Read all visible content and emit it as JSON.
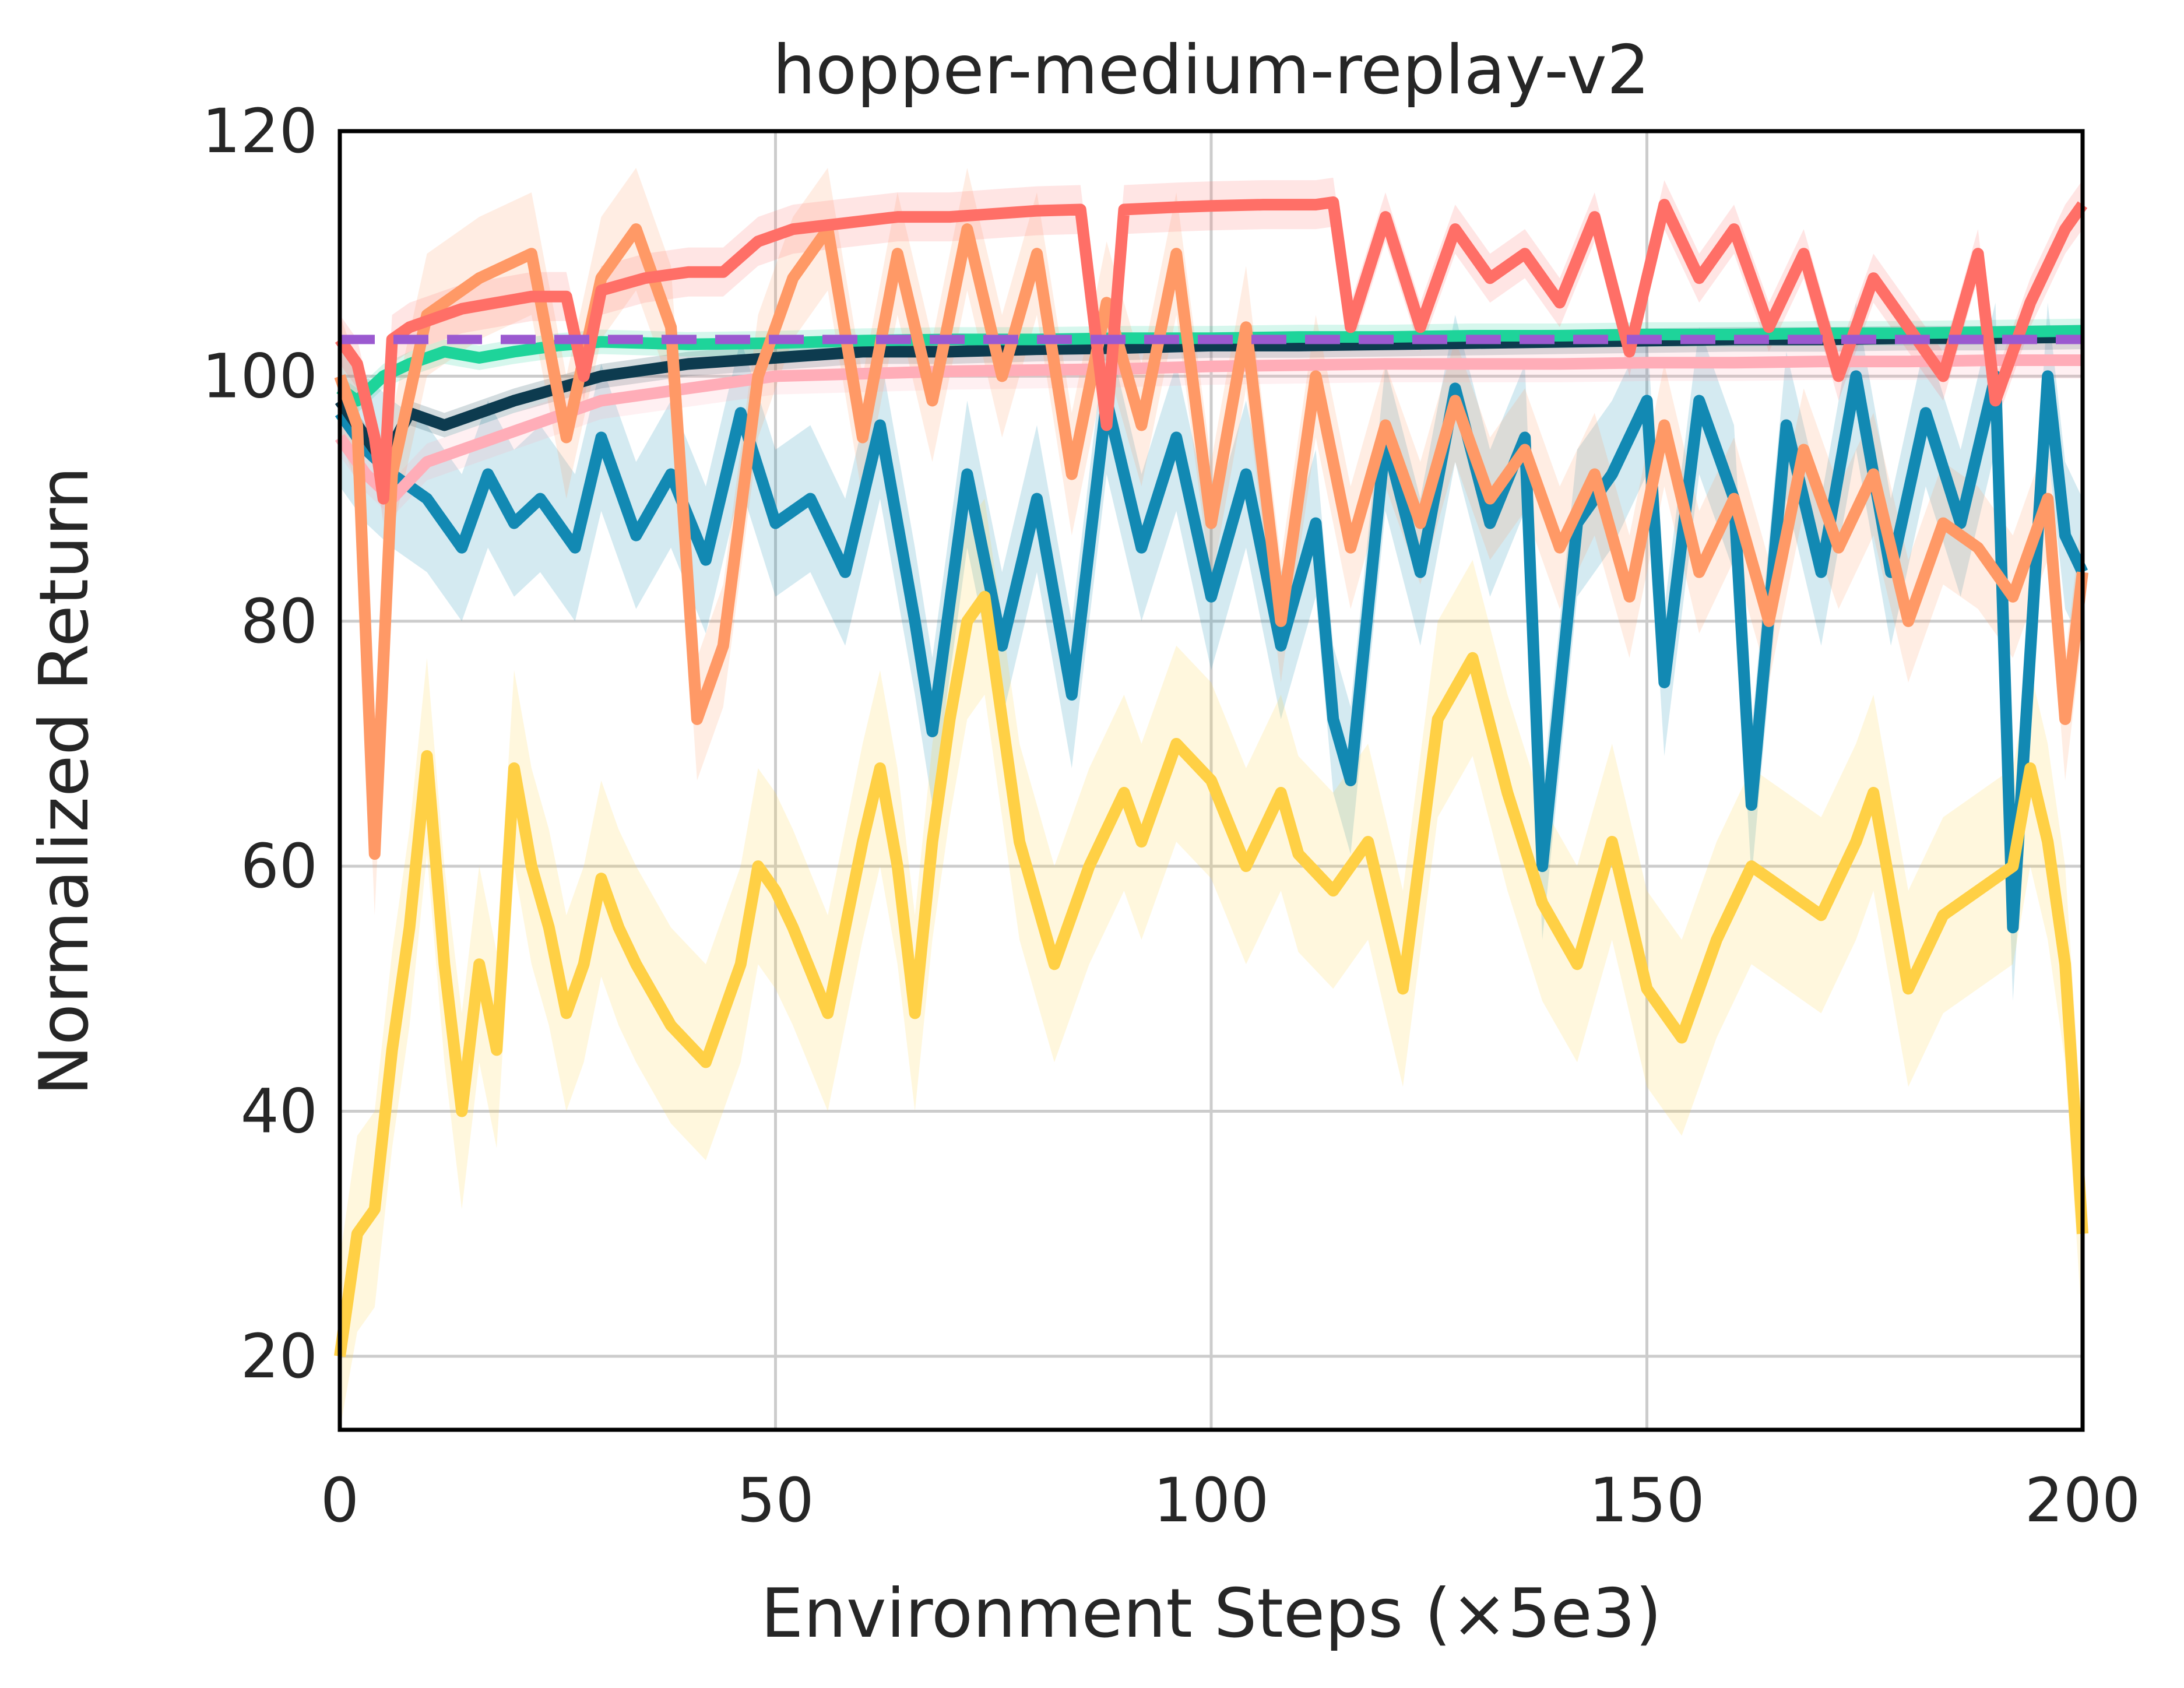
{
  "chart_data": {
    "type": "line",
    "title": "hopper-medium-replay-v2",
    "xlabel": "Environment Steps (×5e3)",
    "ylabel": "Normalized Return",
    "xlim": [
      0,
      200
    ],
    "ylim": [
      14,
      120
    ],
    "xticks": [
      0,
      50,
      100,
      150,
      200
    ],
    "yticks": [
      20,
      40,
      60,
      80,
      100,
      120
    ],
    "grid": true,
    "legend": "none",
    "reference_line": {
      "y": 103,
      "color": "#9b59d0",
      "style": "dashed"
    },
    "series": [
      {
        "name": "series-blue",
        "color": "#1289b3",
        "band": 6,
        "x": [
          0,
          3,
          6,
          10,
          14,
          17,
          20,
          23,
          27,
          30,
          34,
          38,
          42,
          46,
          50,
          54,
          58,
          62,
          66,
          68,
          72,
          76,
          80,
          84,
          88,
          92,
          96,
          100,
          104,
          108,
          112,
          114,
          116,
          120,
          124,
          128,
          132,
          136,
          138,
          142,
          146,
          150,
          152,
          156,
          160,
          162,
          166,
          170,
          174,
          178,
          182,
          186,
          190,
          192,
          196,
          198,
          200
        ],
        "y": [
          97,
          94,
          92,
          90,
          86,
          92,
          88,
          90,
          86,
          95,
          87,
          92,
          85,
          97,
          88,
          90,
          84,
          96,
          80,
          71,
          92,
          78,
          90,
          74,
          98,
          86,
          95,
          82,
          92,
          78,
          88,
          72,
          67,
          95,
          84,
          99,
          88,
          95,
          60,
          88,
          92,
          98,
          75,
          98,
          90,
          65,
          96,
          84,
          100,
          84,
          97,
          88,
          100,
          55,
          100,
          87,
          84
        ]
      },
      {
        "name": "series-dark",
        "color": "#0d3b4f",
        "band": 1,
        "x": [
          0,
          2,
          5,
          8,
          12,
          16,
          20,
          25,
          30,
          40,
          50,
          60,
          70,
          80,
          90,
          100,
          110,
          120,
          130,
          140,
          150,
          160,
          170,
          180,
          190,
          200
        ],
        "y": [
          98,
          96,
          93,
          97,
          96,
          97,
          98,
          99,
          100,
          101,
          101.5,
          102,
          102,
          102.2,
          102.3,
          102.5,
          102.5,
          102.6,
          102.7,
          102.8,
          102.9,
          103,
          103,
          103.1,
          103.1,
          103.2
        ]
      },
      {
        "name": "series-green",
        "color": "#1ed49a",
        "band": 1,
        "x": [
          0,
          2,
          5,
          8,
          12,
          16,
          20,
          25,
          30,
          40,
          50,
          60,
          70,
          80,
          90,
          100,
          110,
          120,
          130,
          140,
          150,
          160,
          170,
          180,
          190,
          200
        ],
        "y": [
          99,
          98,
          100,
          101,
          102,
          101.5,
          102,
          102.5,
          102.8,
          102.6,
          102.7,
          102.9,
          103,
          103,
          103.1,
          103.1,
          103.2,
          103.2,
          103.3,
          103.3,
          103.4,
          103.4,
          103.5,
          103.5,
          103.6,
          103.7
        ]
      },
      {
        "name": "series-pink",
        "color": "#ffadb8",
        "band": 1.5,
        "x": [
          0,
          3,
          6,
          10,
          14,
          18,
          22,
          26,
          30,
          40,
          50,
          60,
          70,
          80,
          90,
          100,
          110,
          120,
          130,
          140,
          150,
          160,
          170,
          180,
          190,
          200
        ],
        "y": [
          95,
          92,
          90,
          93,
          94,
          95,
          96,
          97,
          98,
          99,
          100,
          100.2,
          100.4,
          100.5,
          100.6,
          100.8,
          100.9,
          101,
          101,
          101,
          101.1,
          101.1,
          101.2,
          101.2,
          101.3,
          101.3
        ]
      },
      {
        "name": "series-orange",
        "color": "#ff9966",
        "band": 5,
        "x": [
          0,
          2,
          4,
          6,
          10,
          16,
          22,
          26,
          30,
          34,
          38,
          41,
          44,
          48,
          52,
          56,
          60,
          64,
          68,
          72,
          76,
          80,
          84,
          88,
          92,
          96,
          100,
          104,
          108,
          112,
          116,
          120,
          124,
          128,
          132,
          136,
          140,
          144,
          148,
          152,
          156,
          160,
          164,
          168,
          172,
          176,
          180,
          184,
          188,
          192,
          196,
          198,
          200
        ],
        "y": [
          100,
          96,
          61,
          92,
          105,
          108,
          110,
          95,
          108,
          112,
          104,
          72,
          78,
          100,
          108,
          112,
          95,
          110,
          98,
          112,
          100,
          110,
          92,
          106,
          96,
          110,
          88,
          104,
          80,
          100,
          86,
          96,
          88,
          98,
          90,
          94,
          86,
          92,
          82,
          96,
          84,
          90,
          80,
          94,
          86,
          92,
          80,
          88,
          86,
          82,
          90,
          72,
          84
        ]
      },
      {
        "name": "series-red",
        "color": "#ff6f67",
        "band": 2,
        "x": [
          0,
          2,
          4,
          5,
          6,
          8,
          10,
          14,
          18,
          22,
          26,
          28,
          30,
          35,
          40,
          44,
          48,
          52,
          58,
          64,
          70,
          76,
          80,
          85,
          88,
          90,
          96,
          100,
          106,
          112,
          114,
          116,
          120,
          124,
          128,
          132,
          136,
          140,
          144,
          148,
          152,
          156,
          160,
          164,
          168,
          172,
          176,
          180,
          184,
          188,
          190,
          194,
          198,
          200
        ],
        "y": [
          103,
          101,
          95,
          90,
          103,
          104,
          104.5,
          105.5,
          106,
          106.5,
          106.5,
          100,
          107,
          108,
          108.5,
          108.5,
          111,
          112,
          112.5,
          113,
          113,
          113.3,
          113.5,
          113.6,
          96,
          113.6,
          113.8,
          113.9,
          114,
          114,
          114.2,
          104,
          113,
          104,
          112,
          108,
          110,
          106,
          113,
          102,
          114,
          108,
          112,
          104,
          110,
          100,
          108,
          104,
          100,
          110,
          98,
          106,
          112,
          114
        ]
      },
      {
        "name": "series-yellow",
        "color": "#ffd045",
        "band": 8,
        "x": [
          0,
          2,
          4,
          6,
          8,
          10,
          12,
          14,
          16,
          18,
          20,
          22,
          24,
          26,
          28,
          30,
          32,
          34,
          38,
          42,
          46,
          48,
          50,
          52,
          56,
          60,
          62,
          64,
          66,
          68,
          70,
          72,
          74,
          76,
          78,
          82,
          86,
          90,
          92,
          96,
          100,
          104,
          108,
          110,
          114,
          118,
          122,
          126,
          130,
          134,
          138,
          142,
          146,
          150,
          154,
          158,
          162,
          166,
          170,
          174,
          176,
          180,
          184,
          188,
          192,
          194,
          196,
          198,
          200
        ],
        "y": [
          20,
          30,
          32,
          45,
          55,
          69,
          52,
          40,
          52,
          45,
          68,
          60,
          55,
          48,
          52,
          59,
          55,
          52,
          47,
          44,
          52,
          60,
          58,
          55,
          48,
          62,
          68,
          60,
          48,
          62,
          72,
          80,
          82,
          72,
          62,
          52,
          60,
          66,
          62,
          70,
          67,
          60,
          66,
          61,
          58,
          62,
          50,
          72,
          77,
          66,
          57,
          52,
          62,
          50,
          46,
          54,
          60,
          58,
          56,
          62,
          66,
          50,
          56,
          58,
          60,
          68,
          62,
          52,
          30
        ]
      }
    ]
  }
}
